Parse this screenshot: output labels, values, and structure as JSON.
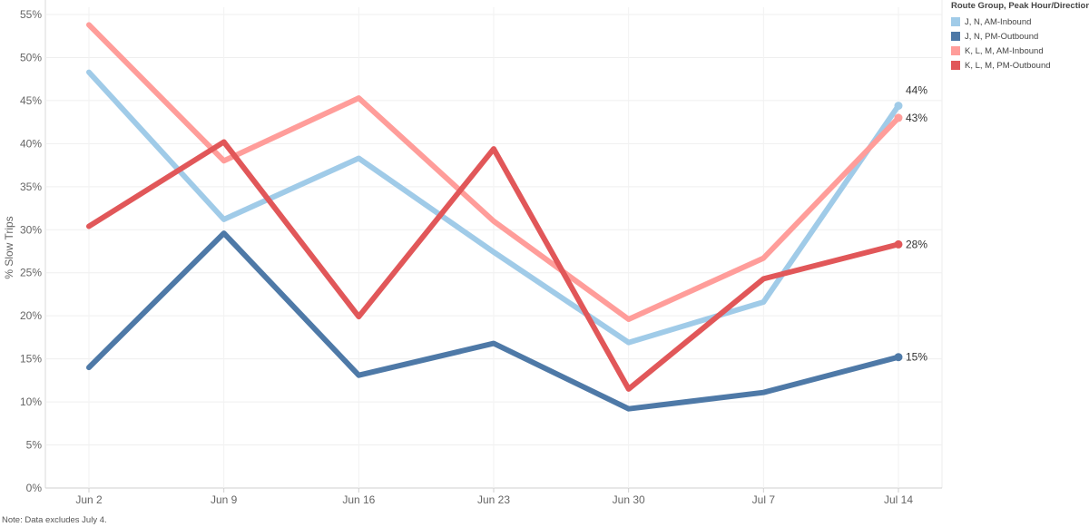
{
  "chart_data": {
    "type": "line",
    "ylabel": "% Slow Trips",
    "xlabel": "",
    "categories": [
      "Jun 2",
      "Jun 9",
      "Jun 16",
      "Jun 23",
      "Jun 30",
      "Jul 7",
      "Jul 14"
    ],
    "ylim": [
      0,
      55
    ],
    "yticks": [
      0,
      5,
      10,
      15,
      20,
      25,
      30,
      35,
      40,
      45,
      50,
      55
    ],
    "ytick_labels": [
      "0%",
      "5%",
      "10%",
      "15%",
      "20%",
      "25%",
      "30%",
      "35%",
      "40%",
      "45%",
      "50%",
      "55%"
    ],
    "grid": true,
    "legend": {
      "title": "Route Group, Peak Hour/Direction",
      "position": "top-right"
    },
    "series": [
      {
        "name": "J, N, AM-Inbound",
        "color": "#a0cbe8",
        "values": [
          48.3,
          31.2,
          38.3,
          27.4,
          16.9,
          21.6,
          44.4
        ],
        "end_label": "44%"
      },
      {
        "name": "J, N, PM-Outbound",
        "color": "#4e79a7",
        "values": [
          14.0,
          29.6,
          13.1,
          16.8,
          9.2,
          11.1,
          15.2
        ],
        "end_label": "15%"
      },
      {
        "name": "K, L, M, AM-Inbound",
        "color": "#ff9d9a",
        "values": [
          53.8,
          38.0,
          45.3,
          31.0,
          19.6,
          26.7,
          43.0
        ],
        "end_label": "43%"
      },
      {
        "name": "K, L, M, PM-Outbound",
        "color": "#e15759",
        "values": [
          30.4,
          40.2,
          19.9,
          39.4,
          11.5,
          24.3,
          28.3
        ],
        "end_label": "28%"
      }
    ]
  },
  "note": "Note: Data excludes July 4."
}
